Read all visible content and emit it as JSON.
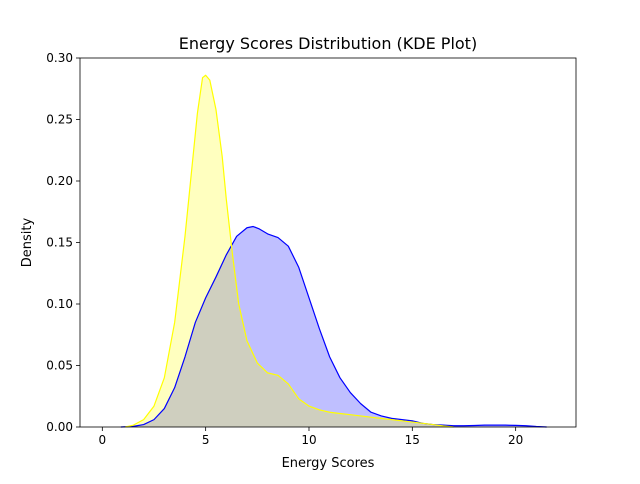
{
  "chart_data": {
    "type": "area",
    "title": "Energy Scores Distribution (KDE Plot)",
    "xlabel": "Energy Scores",
    "ylabel": "Density",
    "xlim": [
      -1.08,
      22.92
    ],
    "ylim": [
      0,
      0.3
    ],
    "xticks": [
      0,
      5,
      10,
      15,
      20
    ],
    "yticks": [
      0.0,
      0.05,
      0.1,
      0.15,
      0.2,
      0.25,
      0.3
    ],
    "xtick_labels": [
      "0",
      "5",
      "10",
      "15",
      "20"
    ],
    "ytick_labels": [
      "0.00",
      "0.05",
      "0.10",
      "0.15",
      "0.20",
      "0.25",
      "0.30"
    ],
    "grid": false,
    "legend": "none",
    "series": [
      {
        "color": "#0000ff",
        "fill": "#0000ff",
        "fill_opacity": 0.25,
        "x": [
          0.9,
          1.5,
          2.0,
          2.5,
          3.0,
          3.5,
          4.0,
          4.5,
          5.0,
          5.5,
          6.0,
          6.5,
          7.0,
          7.3,
          7.6,
          8.0,
          8.5,
          9.0,
          9.5,
          10.0,
          10.5,
          11.0,
          11.5,
          12.0,
          12.5,
          13.0,
          13.5,
          14.0,
          14.5,
          15.0,
          15.5,
          16.0,
          16.5,
          17.0,
          17.5,
          18.0,
          18.5,
          19.0,
          19.5,
          20.0,
          20.5,
          21.0,
          21.5
        ],
        "y": [
          0.0,
          0.0005,
          0.002,
          0.006,
          0.015,
          0.032,
          0.057,
          0.085,
          0.105,
          0.122,
          0.14,
          0.155,
          0.162,
          0.163,
          0.161,
          0.157,
          0.154,
          0.147,
          0.13,
          0.105,
          0.08,
          0.057,
          0.04,
          0.028,
          0.019,
          0.012,
          0.009,
          0.007,
          0.006,
          0.005,
          0.003,
          0.002,
          0.0015,
          0.001,
          0.001,
          0.0012,
          0.0015,
          0.0015,
          0.0015,
          0.0013,
          0.001,
          0.0004,
          0.0
        ]
      },
      {
        "color": "#ffff00",
        "fill": "#ffff00",
        "fill_opacity": 0.25,
        "x": [
          1.1,
          1.5,
          2.0,
          2.5,
          3.0,
          3.5,
          4.0,
          4.3,
          4.6,
          4.85,
          5.0,
          5.2,
          5.5,
          5.8,
          6.0,
          6.3,
          6.6,
          7.0,
          7.5,
          8.0,
          8.5,
          9.0,
          9.5,
          10.0,
          10.5,
          11.0,
          11.5,
          12.0,
          12.5,
          13.0,
          14.0,
          15.0,
          16.0,
          16.5,
          17.0
        ],
        "y": [
          0.0,
          0.0015,
          0.006,
          0.017,
          0.04,
          0.085,
          0.155,
          0.205,
          0.255,
          0.284,
          0.286,
          0.282,
          0.258,
          0.22,
          0.185,
          0.14,
          0.1,
          0.07,
          0.052,
          0.044,
          0.042,
          0.035,
          0.023,
          0.017,
          0.014,
          0.012,
          0.011,
          0.01,
          0.009,
          0.008,
          0.006,
          0.004,
          0.002,
          0.0008,
          0.0
        ]
      }
    ]
  }
}
